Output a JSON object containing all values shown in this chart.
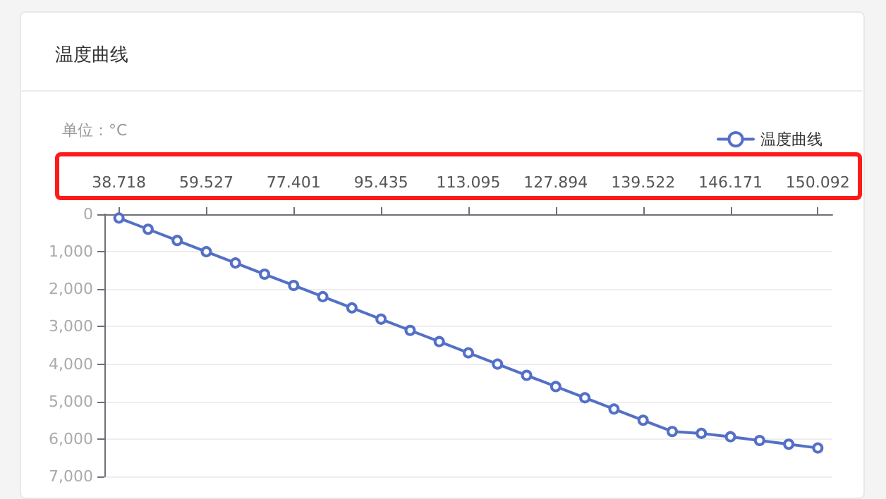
{
  "chart_data": {
    "type": "line",
    "title": "温度曲线",
    "ylabel": "单位：°C",
    "categories": [
      "38.718",
      null,
      null,
      "59.527",
      null,
      null,
      "77.401",
      null,
      null,
      "95.435",
      null,
      null,
      "113.095",
      null,
      null,
      "127.894",
      null,
      null,
      "139.522",
      null,
      null,
      "146.171",
      null,
      null,
      "150.092"
    ],
    "series": [
      {
        "name": "温度曲线",
        "color": "#5470c6",
        "values": [
          100,
          400,
          700,
          1000,
          1300,
          1600,
          1900,
          2200,
          2500,
          2800,
          3100,
          3400,
          3700,
          4000,
          4300,
          4600,
          4900,
          5200,
          5500,
          5800,
          5850,
          5940,
          6040,
          6140,
          6240
        ]
      }
    ],
    "ylim": [
      7000,
      0
    ],
    "yticks": [
      0,
      {
        "value": 1000,
        "label": "1,000"
      },
      {
        "value": 2000,
        "label": "2,000"
      },
      {
        "value": 3000,
        "label": "3,000"
      },
      {
        "value": 4000,
        "label": "4,000"
      },
      {
        "value": 5000,
        "label": "5,000"
      },
      {
        "value": 6000,
        "label": "6,000"
      },
      {
        "value": 7000,
        "label": "7,000"
      }
    ],
    "grid": "y",
    "legend": "top right",
    "marker": "circle",
    "line_style": "solid"
  }
}
